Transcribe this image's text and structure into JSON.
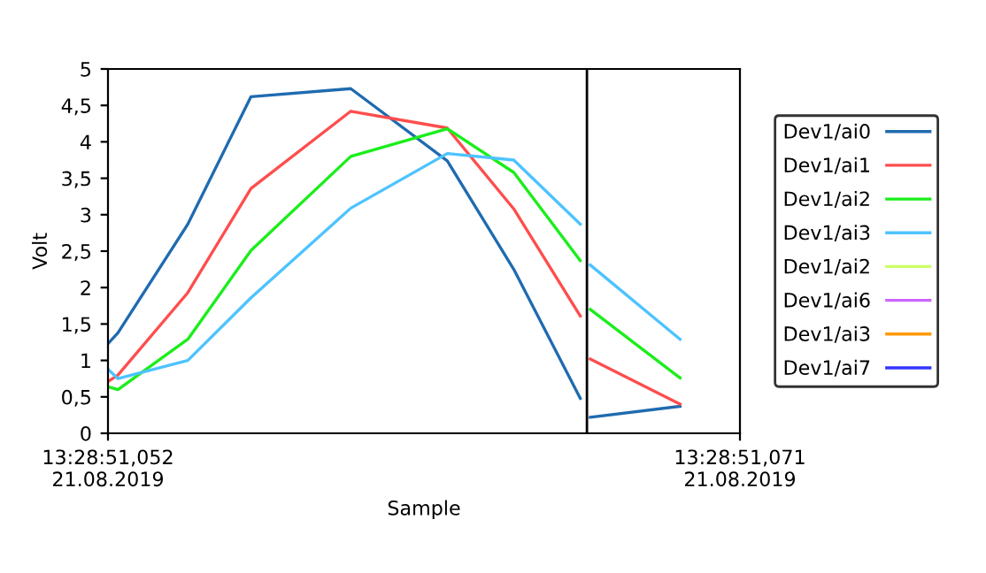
{
  "chart_data": {
    "type": "line",
    "xlabel": "Sample",
    "ylabel": "Volt",
    "x": [
      "2019-08-21T13:28:51.0520",
      "2019-08-21T13:28:51.0523",
      "2019-08-21T13:28:51.0544",
      "2019-08-21T13:28:51.0563",
      "2019-08-21T13:28:51.0593",
      "2019-08-21T13:28:51.0622",
      "2019-08-21T13:28:51.0642",
      "2019-08-21T13:28:51.0662",
      "2019-08-21T13:28:51.0664",
      "2019-08-21T13:28:51.0665",
      "2019-08-21T13:28:51.0692"
    ],
    "xlim": [
      "2019-08-21T13:28:51.052",
      "2019-08-21T13:28:51.071"
    ],
    "xticks": [
      {
        "value": "2019-08-21T13:28:51.052",
        "label": "13:28:51,052\n21.08.2019"
      },
      {
        "value": "2019-08-21T13:28:51.071",
        "label": "13:28:51,071\n21.08.2019"
      }
    ],
    "ylim": [
      0,
      5
    ],
    "yticks": [
      0,
      {
        "value": 0.5,
        "label": "0,5"
      },
      1,
      {
        "value": 1.5,
        "label": "1,5"
      },
      2,
      {
        "value": 2.5,
        "label": "2,5"
      },
      3,
      {
        "value": 3.5,
        "label": "3,5"
      },
      4,
      {
        "value": 4.5,
        "label": "4,5"
      },
      5
    ],
    "series": [
      {
        "name": "Dev1/ai0",
        "color": "#1f6bb0",
        "values": [
          1.23,
          1.38,
          2.87,
          4.62,
          4.73,
          3.74,
          2.25,
          0.48,
          null,
          0.22,
          0.37
        ]
      },
      {
        "name": "Dev1/ai1",
        "color": "#ff4d4d",
        "values": [
          0.71,
          0.8,
          1.93,
          3.36,
          4.42,
          4.19,
          3.08,
          1.61,
          null,
          1.02,
          0.4
        ]
      },
      {
        "name": "Dev1/ai2",
        "color": "#1aee1a",
        "values": [
          0.64,
          0.6,
          1.29,
          2.51,
          3.8,
          4.18,
          3.58,
          2.37,
          null,
          1.7,
          0.76
        ]
      },
      {
        "name": "Dev1/ai3",
        "color": "#4dc3ff",
        "values": [
          0.88,
          0.75,
          1.0,
          1.86,
          3.09,
          3.84,
          3.75,
          2.87,
          null,
          2.31,
          1.29
        ]
      },
      {
        "name": "Dev1/ai2",
        "color": "#ccff66",
        "values": [
          null,
          null,
          null,
          null,
          null,
          null,
          null,
          null,
          null,
          null,
          null
        ]
      },
      {
        "name": "Dev1/ai6",
        "color": "#cc66ff",
        "values": [
          null,
          null,
          null,
          null,
          null,
          null,
          null,
          null,
          null,
          null,
          null
        ]
      },
      {
        "name": "Dev1/ai3",
        "color": "#ff9900",
        "values": [
          null,
          null,
          null,
          null,
          null,
          null,
          null,
          null,
          null,
          null,
          null
        ]
      },
      {
        "name": "Dev1/ai7",
        "color": "#3333ff",
        "values": [
          null,
          null,
          null,
          null,
          null,
          null,
          null,
          null,
          null,
          null,
          null
        ]
      }
    ],
    "ref_lines": [
      {
        "axis": "x",
        "value": "2019-08-21T13:28:51.0664",
        "color": "#000000"
      }
    ],
    "grid": false,
    "legend": "right",
    "marker": "none",
    "line_style": "solid"
  }
}
